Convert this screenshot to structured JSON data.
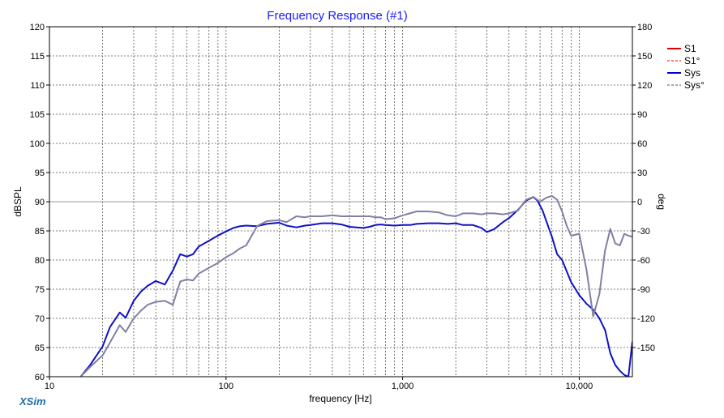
{
  "chart_data": {
    "type": "line",
    "title": "Frequency Response (#1)",
    "xlabel": "frequency [Hz]",
    "ylabel_left": "dBSPL",
    "ylabel_right": "deg",
    "x_scale": "log",
    "xlim": [
      10,
      20000
    ],
    "ylim_left": [
      60,
      120
    ],
    "ylim_right": [
      -180,
      180
    ],
    "x_tick_labels": [
      {
        "value": 10,
        "label": "10"
      },
      {
        "value": 100,
        "label": "100"
      },
      {
        "value": 1000,
        "label": "1,000"
      },
      {
        "value": 10000,
        "label": "10,000"
      }
    ],
    "y_left_ticks": [
      60,
      65,
      70,
      75,
      80,
      85,
      90,
      95,
      100,
      105,
      110,
      115,
      120
    ],
    "y_right_ticks": [
      180,
      150,
      120,
      90,
      60,
      30,
      0,
      -30,
      -60,
      -90,
      -120,
      -150
    ],
    "grid": true,
    "legend_position": "top-right",
    "legend": [
      {
        "label": "S1",
        "color": "#e00000",
        "style": "solid"
      },
      {
        "label": "S1°",
        "color": "#e00000",
        "style": "dashed"
      },
      {
        "label": "Sys",
        "color": "#0000cc",
        "style": "solid"
      },
      {
        "label": "Sys°",
        "color": "#555555",
        "style": "dashed"
      }
    ],
    "series": [
      {
        "name": "Sys",
        "axis": "left",
        "color": "#1010c8",
        "x": [
          15,
          17,
          20,
          22,
          25,
          27,
          30,
          33,
          36,
          40,
          45,
          50,
          55,
          60,
          65,
          70,
          80,
          90,
          100,
          110,
          120,
          130,
          150,
          170,
          200,
          220,
          250,
          280,
          300,
          350,
          400,
          450,
          500,
          550,
          600,
          650,
          700,
          750,
          800,
          900,
          1000,
          1100,
          1200,
          1400,
          1600,
          1800,
          2000,
          2200,
          2500,
          2800,
          3000,
          3300,
          3700,
          4000,
          4500,
          5000,
          5500,
          5800,
          6200,
          6600,
          7000,
          7500,
          8000,
          9000,
          10000,
          11000,
          12000,
          13000,
          14000,
          15000,
          16000,
          17000,
          18000,
          19000,
          20000
        ],
        "values": [
          60,
          62,
          65.2,
          68.5,
          71,
          70.1,
          73,
          74.6,
          75.6,
          76.4,
          75.8,
          78.2,
          81,
          80.6,
          81,
          82.3,
          83.3,
          84.2,
          84.9,
          85.5,
          85.8,
          85.9,
          85.8,
          86.2,
          86.4,
          85.9,
          85.6,
          85.9,
          86,
          86.3,
          86.3,
          86.1,
          85.7,
          85.6,
          85.5,
          85.7,
          86,
          86.1,
          86,
          85.9,
          86,
          86,
          86.2,
          86.3,
          86.3,
          86.2,
          86.3,
          86,
          86,
          85.5,
          84.8,
          85.3,
          86.5,
          87.2,
          88.6,
          90.2,
          90.8,
          90.2,
          88.5,
          86.2,
          84,
          81,
          80,
          76.2,
          74,
          72.5,
          71.5,
          70,
          68,
          64,
          62,
          61,
          60.3,
          60,
          66
        ]
      },
      {
        "name": "Sys°",
        "axis": "right",
        "color": "#8080a4",
        "x": [
          15,
          17,
          20,
          22,
          25,
          27,
          30,
          33,
          36,
          40,
          45,
          50,
          55,
          60,
          65,
          70,
          80,
          90,
          100,
          110,
          120,
          130,
          150,
          170,
          200,
          220,
          250,
          280,
          300,
          350,
          400,
          450,
          500,
          550,
          600,
          650,
          700,
          750,
          800,
          900,
          1000,
          1100,
          1200,
          1400,
          1600,
          1800,
          2000,
          2200,
          2500,
          2800,
          3000,
          3300,
          3700,
          4000,
          4500,
          5000,
          5500,
          6000,
          6500,
          7000,
          7500,
          8000,
          8500,
          9000,
          10000,
          11000,
          12000,
          13000,
          14000,
          15000,
          16000,
          17000,
          18000,
          19000,
          20000
        ],
        "values": [
          -180,
          -170,
          -158,
          -145,
          -127,
          -134,
          -120,
          -112,
          -106,
          -103,
          -102,
          -106,
          -82,
          -80,
          -81,
          -74,
          -68,
          -63,
          -57,
          -53,
          -48,
          -45,
          -25,
          -20,
          -19,
          -21,
          -15,
          -16,
          -15,
          -15,
          -14,
          -15,
          -15,
          -15,
          -15,
          -15,
          -16,
          -16,
          -18,
          -17,
          -14,
          -12,
          -10,
          -10,
          -11,
          -14,
          -15,
          -12,
          -12,
          -13,
          -12,
          -12,
          -13,
          -12,
          -9,
          2,
          5,
          0,
          4,
          6,
          2,
          -10,
          -25,
          -35,
          -33,
          -70,
          -118,
          -95,
          -50,
          -28,
          -43,
          -45,
          -33,
          -35,
          -36
        ]
      }
    ]
  },
  "brand": "XSim"
}
